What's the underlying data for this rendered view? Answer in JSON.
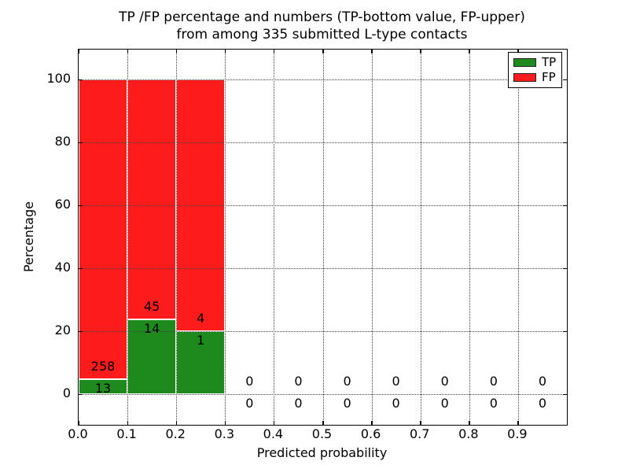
{
  "figure": {
    "title_line1": "TP /FP percentage and numbers (TP-bottom value, FP-upper)",
    "title_line2": "from among 335 submitted L-type contacts",
    "xlabel": "Predicted probability",
    "ylabel": "Percentage"
  },
  "legend": {
    "position": "upper right",
    "items": [
      {
        "label": "TP",
        "color": "#1e8a1e"
      },
      {
        "label": "FP",
        "color": "#fd1b1b"
      }
    ]
  },
  "chart_data": {
    "type": "bar",
    "stacked": true,
    "normalized_to_100": true,
    "title": "TP /FP percentage and numbers (TP-bottom value, FP-upper) from among 335 submitted L-type contacts",
    "xlabel": "Predicted probability",
    "ylabel": "Percentage",
    "grid": "dotted",
    "legend_position": "upper right",
    "xlim": [
      0.0,
      1.0
    ],
    "ylim": [
      -9.75,
      109.5
    ],
    "x_tick_values": [
      0.0,
      0.1,
      0.2,
      0.3,
      0.4,
      0.5,
      0.6,
      0.7,
      0.8,
      0.9
    ],
    "x_tick_labels": [
      "0.0",
      "0.1",
      "0.2",
      "0.3",
      "0.4",
      "0.5",
      "0.6",
      "0.7",
      "0.8",
      "0.9"
    ],
    "y_tick_values": [
      0,
      20,
      40,
      60,
      80,
      100
    ],
    "y_tick_labels": [
      "0",
      "20",
      "40",
      "60",
      "80",
      "100"
    ],
    "bin_edges": [
      0.0,
      0.1,
      0.2,
      0.3,
      0.4,
      0.5,
      0.6,
      0.7,
      0.8,
      0.9,
      1.0
    ],
    "series": [
      {
        "name": "TP",
        "color": "#1e8a1e",
        "counts": [
          13,
          14,
          1,
          0,
          0,
          0,
          0,
          0,
          0,
          0
        ]
      },
      {
        "name": "FP",
        "color": "#fd1b1b",
        "counts": [
          258,
          45,
          4,
          0,
          0,
          0,
          0,
          0,
          0,
          0
        ]
      }
    ],
    "bars": [
      {
        "bin": "0.0-0.1",
        "tp_count": 13,
        "fp_count": 258,
        "tp_percent": 4.8,
        "fp_percent": 95.2
      },
      {
        "bin": "0.1-0.2",
        "tp_count": 14,
        "fp_count": 45,
        "tp_percent": 23.7,
        "fp_percent": 76.3
      },
      {
        "bin": "0.2-0.3",
        "tp_count": 1,
        "fp_count": 4,
        "tp_percent": 20.0,
        "fp_percent": 80.0
      },
      {
        "bin": "0.3-0.4",
        "tp_count": 0,
        "fp_count": 0,
        "tp_percent": 0,
        "fp_percent": 0
      },
      {
        "bin": "0.4-0.5",
        "tp_count": 0,
        "fp_count": 0,
        "tp_percent": 0,
        "fp_percent": 0
      },
      {
        "bin": "0.5-0.6",
        "tp_count": 0,
        "fp_count": 0,
        "tp_percent": 0,
        "fp_percent": 0
      },
      {
        "bin": "0.6-0.7",
        "tp_count": 0,
        "fp_count": 0,
        "tp_percent": 0,
        "fp_percent": 0
      },
      {
        "bin": "0.7-0.8",
        "tp_count": 0,
        "fp_count": 0,
        "tp_percent": 0,
        "fp_percent": 0
      },
      {
        "bin": "0.8-0.9",
        "tp_count": 0,
        "fp_count": 0,
        "tp_percent": 0,
        "fp_percent": 0
      },
      {
        "bin": "0.9-1.0",
        "tp_count": 0,
        "fp_count": 0,
        "tp_percent": 0,
        "fp_percent": 0
      }
    ]
  }
}
